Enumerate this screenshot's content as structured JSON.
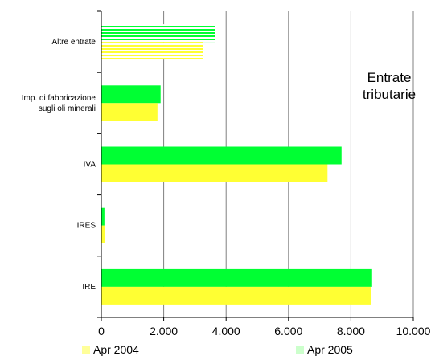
{
  "chart_data": {
    "type": "bar",
    "orientation": "horizontal",
    "title": "Entrate tributarie",
    "title_lines": [
      "Entrate",
      "tributarie"
    ],
    "categories": [
      "Altre entrate",
      "Imp. di fabbricazione sugli oli minerali",
      "IVA",
      "IRES",
      "IRE"
    ],
    "category_label_lines": [
      [
        "Altre entrate"
      ],
      [
        "Imp. di fabbricazione",
        "sugli oli minerali"
      ],
      [
        "IVA"
      ],
      [
        "IRES"
      ],
      [
        "IRE"
      ]
    ],
    "series": [
      {
        "name": "Apr 2004",
        "values": [
          3250,
          1800,
          7250,
          120,
          8650
        ]
      },
      {
        "name": "Apr 2005",
        "values": [
          3650,
          1900,
          7700,
          100,
          8680
        ]
      }
    ],
    "series_colors": [
      "#ffff33",
      "#00ff33"
    ],
    "xlim": [
      0,
      10000
    ],
    "xticks": [
      0,
      2000,
      4000,
      6000,
      8000,
      10000
    ],
    "xtick_labels": [
      "0",
      "2.000",
      "4.000",
      "6.000",
      "8.000",
      "10.000"
    ],
    "xlabel": "",
    "ylabel": "",
    "grid": "vertical",
    "legend_position": "bottom"
  }
}
